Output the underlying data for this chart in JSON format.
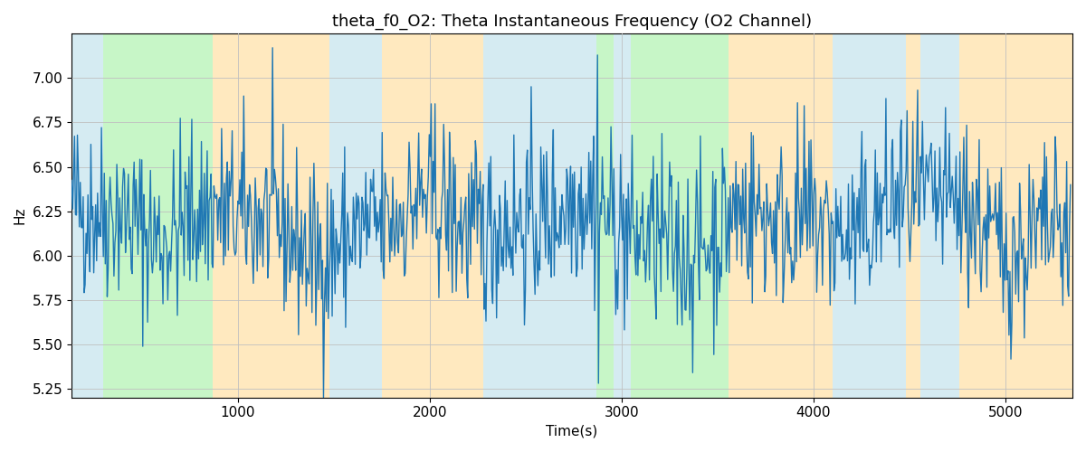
{
  "title": "theta_f0_O2: Theta Instantaneous Frequency (O2 Channel)",
  "xlabel": "Time(s)",
  "ylabel": "Hz",
  "ylim": [
    5.2,
    7.25
  ],
  "xlim": [
    135,
    5350
  ],
  "yticks": [
    5.25,
    5.5,
    5.75,
    6.0,
    6.25,
    6.5,
    6.75,
    7.0
  ],
  "xticks": [
    1000,
    2000,
    3000,
    4000,
    5000
  ],
  "line_color": "#1f77b4",
  "line_width": 1.0,
  "bg_color": "#ffffff",
  "grid_color": "#c0c0c0",
  "title_fontsize": 13,
  "label_fontsize": 11,
  "tick_fontsize": 11,
  "background_bands": [
    {
      "xmin": 135,
      "xmax": 300,
      "color": "#add8e6",
      "alpha": 0.5
    },
    {
      "xmin": 300,
      "xmax": 870,
      "color": "#90EE90",
      "alpha": 0.5
    },
    {
      "xmin": 870,
      "xmax": 1080,
      "color": "#FFD580",
      "alpha": 0.5
    },
    {
      "xmin": 1080,
      "xmax": 1480,
      "color": "#FFD580",
      "alpha": 0.5
    },
    {
      "xmin": 1480,
      "xmax": 1750,
      "color": "#add8e6",
      "alpha": 0.5
    },
    {
      "xmin": 1750,
      "xmax": 2280,
      "color": "#FFD580",
      "alpha": 0.5
    },
    {
      "xmin": 2280,
      "xmax": 2830,
      "color": "#add8e6",
      "alpha": 0.5
    },
    {
      "xmin": 2830,
      "xmax": 2870,
      "color": "#add8e6",
      "alpha": 0.5
    },
    {
      "xmin": 2870,
      "xmax": 2960,
      "color": "#90EE90",
      "alpha": 0.5
    },
    {
      "xmin": 2960,
      "xmax": 3050,
      "color": "#add8e6",
      "alpha": 0.5
    },
    {
      "xmin": 3050,
      "xmax": 3560,
      "color": "#90EE90",
      "alpha": 0.5
    },
    {
      "xmin": 3560,
      "xmax": 3760,
      "color": "#FFD580",
      "alpha": 0.5
    },
    {
      "xmin": 3760,
      "xmax": 4100,
      "color": "#FFD580",
      "alpha": 0.5
    },
    {
      "xmin": 4100,
      "xmax": 4480,
      "color": "#add8e6",
      "alpha": 0.5
    },
    {
      "xmin": 4480,
      "xmax": 4560,
      "color": "#FFD580",
      "alpha": 0.5
    },
    {
      "xmin": 4560,
      "xmax": 4760,
      "color": "#add8e6",
      "alpha": 0.5
    },
    {
      "xmin": 4760,
      "xmax": 5000,
      "color": "#FFD580",
      "alpha": 0.5
    },
    {
      "xmin": 5000,
      "xmax": 5350,
      "color": "#FFD580",
      "alpha": 0.5
    }
  ],
  "seed": 42,
  "n_points": 1040,
  "t_start": 135,
  "t_end": 5340,
  "mean_freq": 6.18,
  "freq_std": 0.25
}
